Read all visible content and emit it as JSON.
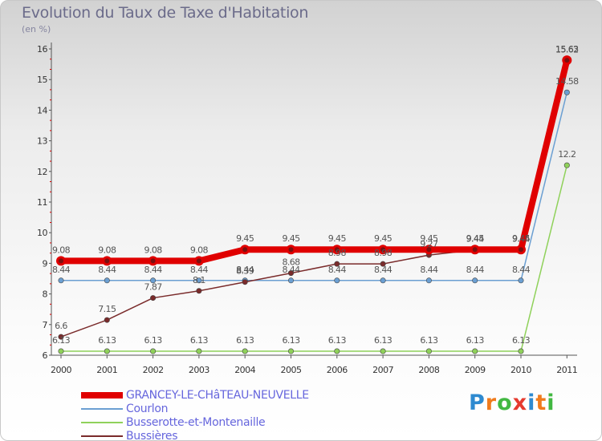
{
  "title": "Evolution du Taux de Taxe d'Habitation",
  "unit_label": "(en %)",
  "logo": {
    "text": "Proxiti",
    "colors": [
      "#2e8ad0",
      "#f07b1c",
      "#42b842",
      "#e63a2e",
      "#2e8ad0",
      "#f07b1c",
      "#42b842"
    ]
  },
  "chart_data": {
    "type": "line",
    "x": [
      "2000",
      "2001",
      "2002",
      "2003",
      "2004",
      "2005",
      "2006",
      "2007",
      "2008",
      "2009",
      "2010",
      "2011"
    ],
    "ylim": [
      6,
      16
    ],
    "yticks": [
      "6",
      "7",
      "8",
      "9",
      "10",
      "11",
      "12",
      "13",
      "14",
      "15",
      "16"
    ],
    "grid": false,
    "legend_position": "bottom-left",
    "series": [
      {
        "name": "GRANCEY-LE-CHâTEAU-NEUVELLE",
        "color": "#e00000",
        "values": [
          9.08,
          9.08,
          9.08,
          9.08,
          9.45,
          9.45,
          9.45,
          9.45,
          9.45,
          9.45,
          9.45,
          15.63
        ],
        "labels": [
          "9.08",
          "9.08",
          "9.08",
          "9.08",
          "9.45",
          "9.45",
          "9.45",
          "9.45",
          "9.45",
          "9.45",
          "9.45",
          "15.63"
        ]
      },
      {
        "name": "Courlon",
        "color": "#6b9fd2",
        "values": [
          8.44,
          8.44,
          8.44,
          8.44,
          8.44,
          8.44,
          8.44,
          8.44,
          8.44,
          8.44,
          8.44,
          14.58
        ],
        "labels": [
          "8.44",
          "8.44",
          "8.44",
          "8.44",
          "8.44",
          "8.44",
          "8.44",
          "8.44",
          "8.44",
          "8.44",
          "8.44",
          "14.58"
        ]
      },
      {
        "name": "Busserotte-et-Montenaille",
        "color": "#8fd15a",
        "values": [
          6.13,
          6.13,
          6.13,
          6.13,
          6.13,
          6.13,
          6.13,
          6.13,
          6.13,
          6.13,
          6.13,
          12.2
        ],
        "labels": [
          "6.13",
          "6.13",
          "6.13",
          "6.13",
          "6.13",
          "6.13",
          "6.13",
          "6.13",
          "6.13",
          "6.13",
          "6.13",
          "12.2"
        ]
      },
      {
        "name": "Bussières",
        "color": "#7a2b2b",
        "values": [
          6.6,
          7.15,
          7.87,
          8.1,
          8.39,
          8.68,
          8.98,
          8.98,
          9.27,
          9.44,
          9.44,
          15.62
        ],
        "labels": [
          "6.6",
          "7.15",
          "7.87",
          "8.1",
          "8.39",
          "8.68",
          "8.98",
          "8.98",
          "9.27",
          "9.44",
          "9.44",
          "15.62"
        ]
      }
    ]
  }
}
